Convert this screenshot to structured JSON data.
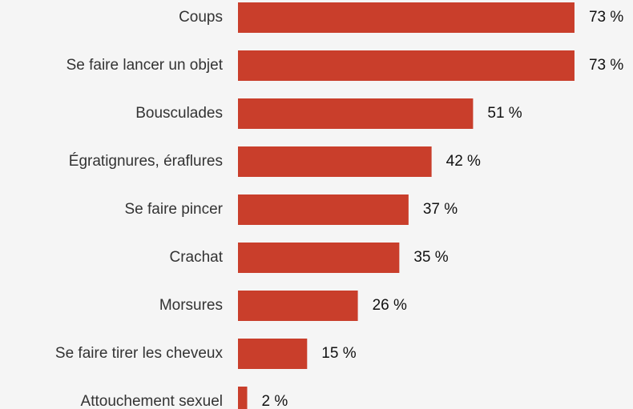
{
  "chart_data": {
    "type": "bar",
    "orientation": "horizontal",
    "categories": [
      "Coups",
      "Se faire lancer un objet",
      "Bousculades",
      "Égratignures, éraflures",
      "Se faire pincer",
      "Crachat",
      "Morsures",
      "Se faire tirer les cheveux",
      "Attouchement sexuel"
    ],
    "values": [
      73,
      73,
      51,
      42,
      37,
      35,
      26,
      15,
      2
    ],
    "value_labels": [
      "73 %",
      "73 %",
      "51 %",
      "42 %",
      "37 %",
      "35 %",
      "26 %",
      "15 %",
      "2 %"
    ],
    "color": "#c93e2b"
  }
}
